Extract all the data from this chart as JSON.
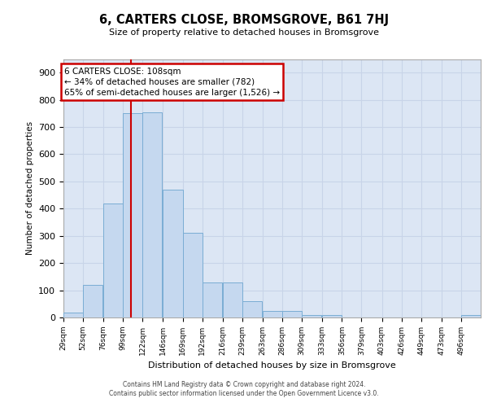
{
  "title": "6, CARTERS CLOSE, BROMSGROVE, B61 7HJ",
  "subtitle": "Size of property relative to detached houses in Bromsgrove",
  "xlabel": "Distribution of detached houses by size in Bromsgrove",
  "ylabel": "Number of detached properties",
  "bar_color": "#c5d8ef",
  "bar_edge_color": "#7aadd4",
  "background_color": "#dce6f4",
  "grid_color": "#c8d4e8",
  "bin_edges": [
    29,
    52,
    76,
    99,
    122,
    146,
    169,
    192,
    216,
    239,
    263,
    286,
    309,
    333,
    356,
    379,
    403,
    426,
    449,
    473,
    496
  ],
  "bar_heights": [
    18,
    120,
    420,
    750,
    755,
    470,
    310,
    130,
    130,
    60,
    25,
    25,
    10,
    10,
    0,
    0,
    0,
    0,
    0,
    0,
    10
  ],
  "property_size": 108,
  "annotation_line1": "6 CARTERS CLOSE: 108sqm",
  "annotation_line2": "← 34% of detached houses are smaller (782)",
  "annotation_line3": "65% of semi-detached houses are larger (1,526) →",
  "ylim": [
    0,
    950
  ],
  "yticks": [
    0,
    100,
    200,
    300,
    400,
    500,
    600,
    700,
    800,
    900
  ],
  "footer_line1": "Contains HM Land Registry data © Crown copyright and database right 2024.",
  "footer_line2": "Contains public sector information licensed under the Open Government Licence v3.0."
}
